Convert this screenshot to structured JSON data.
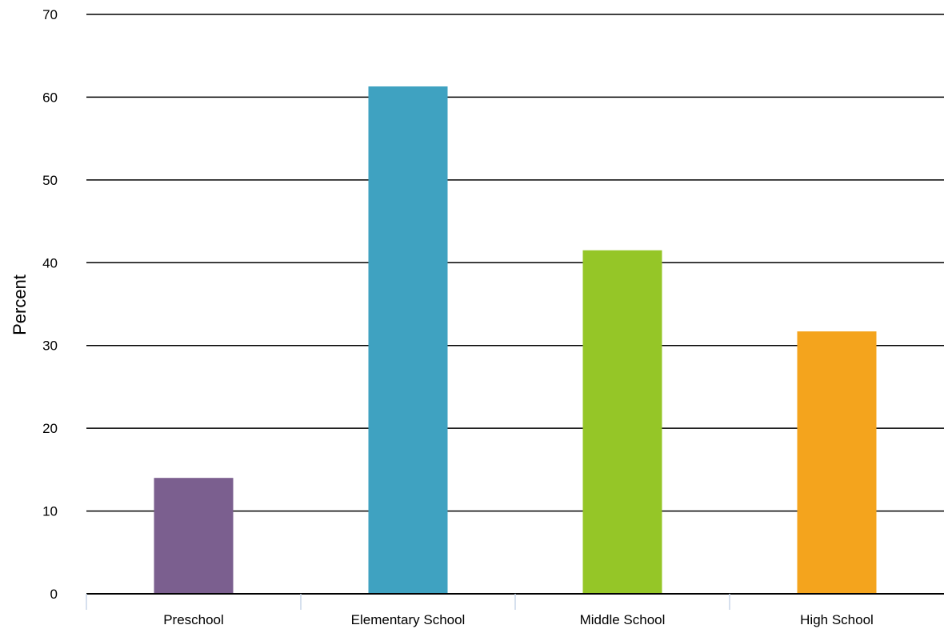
{
  "chart_data": {
    "type": "bar",
    "title": "",
    "xlabel": "",
    "ylabel": "Percent",
    "categories": [
      "Preschool",
      "Elementary School",
      "Middle School",
      "High School"
    ],
    "values": [
      14,
      61.3,
      41.5,
      31.7
    ],
    "colors": [
      "#7b5f8f",
      "#3fa2c1",
      "#95c627",
      "#f4a41d"
    ],
    "ylim": [
      0,
      70
    ],
    "yticks": [
      0,
      10,
      20,
      30,
      40,
      50,
      60,
      70
    ],
    "grid": true,
    "legend": "none"
  }
}
